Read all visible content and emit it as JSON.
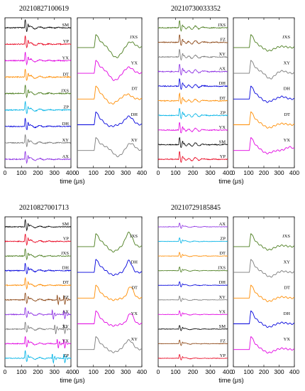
{
  "figure": {
    "colors": {
      "SM": "#000000",
      "YP": "#e8001c",
      "YX": "#e100e1",
      "DT": "#ff8c00",
      "JXS": "#4b7d1e",
      "ZP": "#00b3e6",
      "DH": "#0000dc",
      "XY": "#7a7a7a",
      "AX": "#8a2be2",
      "FZ": "#8b4513"
    },
    "panels": [
      {
        "title": "20210827100619",
        "xlabel": "time (μs)",
        "xticks": [
          "0",
          "100",
          "200",
          "300",
          "400"
        ],
        "stack_labels": [
          "SM",
          "YP",
          "YX",
          "DT",
          "JXS",
          "ZP",
          "DH",
          "XY",
          "AX"
        ],
        "mag_labels": [
          "JXS",
          "YX",
          "DT",
          "DH",
          "XY"
        ]
      },
      {
        "title": "20210730033352",
        "xlabel": "time (μs)",
        "xticks": [
          "0",
          "100",
          "200",
          "300",
          "400"
        ],
        "stack_labels": [
          "JXS",
          "FZ",
          "XY",
          "AX",
          "DH",
          "DT",
          "ZP",
          "YX",
          "SM",
          "YP"
        ],
        "mag_labels": [
          "JXS",
          "XY",
          "DH",
          "DT",
          "YX"
        ]
      },
      {
        "title": "20210827001713",
        "xlabel": "time (μs)",
        "xticks": [
          "0",
          "100",
          "200",
          "300",
          "400"
        ],
        "stack_labels": [
          "SM",
          "YP",
          "JXS",
          "DH",
          "DT",
          "FZ",
          "AX",
          "XY",
          "YX",
          "ZP"
        ],
        "mag_labels": [
          "JXS",
          "DH",
          "DT",
          "YX",
          "XY"
        ]
      },
      {
        "title": "20210729185845",
        "xlabel": "time (μs)",
        "xticks": [
          "0",
          "100",
          "200",
          "300",
          "400"
        ],
        "stack_labels": [
          "AX",
          "ZP",
          "DT",
          "JXS",
          "DH",
          "XY",
          "YX",
          "SM",
          "FZ",
          "YP"
        ],
        "mag_labels": [
          "JXS",
          "XY",
          "DT",
          "DH",
          "YX"
        ]
      }
    ]
  },
  "chart_data": [
    {
      "type": "line",
      "title": "20210827100619",
      "xlabel": "time (μs)",
      "xlim": [
        0,
        400
      ],
      "xticks": [
        0,
        100,
        200,
        300,
        400
      ],
      "series": [
        {
          "name": "SM"
        },
        {
          "name": "YP"
        },
        {
          "name": "YX"
        },
        {
          "name": "DT"
        },
        {
          "name": "JXS"
        },
        {
          "name": "ZP"
        },
        {
          "name": "DH"
        },
        {
          "name": "XY"
        },
        {
          "name": "AX"
        }
      ],
      "magnified_series": [
        {
          "name": "JXS"
        },
        {
          "name": "YX"
        },
        {
          "name": "DT"
        },
        {
          "name": "DH"
        },
        {
          "name": "XY"
        }
      ]
    },
    {
      "type": "line",
      "title": "20210730033352",
      "xlabel": "time (μs)",
      "xlim": [
        0,
        400
      ],
      "xticks": [
        0,
        100,
        200,
        300,
        400
      ],
      "series": [
        {
          "name": "JXS"
        },
        {
          "name": "FZ"
        },
        {
          "name": "XY"
        },
        {
          "name": "AX"
        },
        {
          "name": "DH"
        },
        {
          "name": "DT"
        },
        {
          "name": "ZP"
        },
        {
          "name": "YX"
        },
        {
          "name": "SM"
        },
        {
          "name": "YP"
        }
      ],
      "magnified_series": [
        {
          "name": "JXS"
        },
        {
          "name": "XY"
        },
        {
          "name": "DH"
        },
        {
          "name": "DT"
        },
        {
          "name": "YX"
        }
      ]
    },
    {
      "type": "line",
      "title": "20210827001713",
      "xlabel": "time (μs)",
      "xlim": [
        0,
        400
      ],
      "xticks": [
        0,
        100,
        200,
        300,
        400
      ],
      "series": [
        {
          "name": "SM"
        },
        {
          "name": "YP"
        },
        {
          "name": "JXS"
        },
        {
          "name": "DH"
        },
        {
          "name": "DT"
        },
        {
          "name": "FZ"
        },
        {
          "name": "AX"
        },
        {
          "name": "XY"
        },
        {
          "name": "YX"
        },
        {
          "name": "ZP"
        }
      ],
      "magnified_series": [
        {
          "name": "JXS"
        },
        {
          "name": "DH"
        },
        {
          "name": "DT"
        },
        {
          "name": "YX"
        },
        {
          "name": "XY"
        }
      ]
    },
    {
      "type": "line",
      "title": "20210729185845",
      "xlabel": "time (μs)",
      "xlim": [
        0,
        400
      ],
      "xticks": [
        0,
        100,
        200,
        300,
        400
      ],
      "series": [
        {
          "name": "AX"
        },
        {
          "name": "ZP"
        },
        {
          "name": "DT"
        },
        {
          "name": "JXS"
        },
        {
          "name": "DH"
        },
        {
          "name": "XY"
        },
        {
          "name": "YX"
        },
        {
          "name": "SM"
        },
        {
          "name": "FZ"
        },
        {
          "name": "YP"
        }
      ],
      "magnified_series": [
        {
          "name": "JXS"
        },
        {
          "name": "XY"
        },
        {
          "name": "DT"
        },
        {
          "name": "DH"
        },
        {
          "name": "YX"
        }
      ]
    }
  ]
}
